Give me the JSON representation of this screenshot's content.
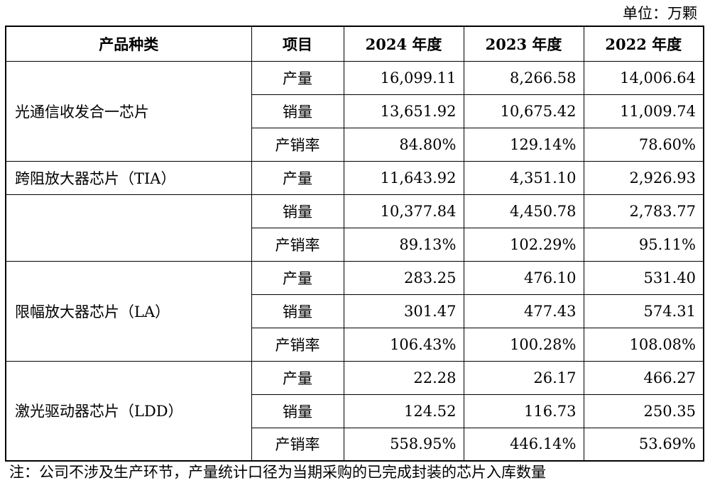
{
  "unit_label": "单位：万颗",
  "headers": [
    "产品种类",
    "项目",
    "2024 年度",
    "2023 年度",
    "2022 年度"
  ],
  "groups": [
    {
      "category": "光通信收发合一芯片",
      "rows": [
        {
          "item": "产量",
          "v2024": "16,099.11",
          "v2023": "8,266.58",
          "v2022": "14,006.64"
        },
        {
          "item": "销量",
          "v2024": "13,651.92",
          "v2023": "10,675.42",
          "v2022": "11,009.74"
        },
        {
          "item": "产销率",
          "v2024": "84.80%",
          "v2023": "129.14%",
          "v2022": "78.60%"
        }
      ]
    },
    {
      "category": "跨阻放大器芯片（TIA）",
      "rows": [
        {
          "item": "产量",
          "v2024": "11,643.92",
          "v2023": "4,351.10",
          "v2022": "2,926.93"
        },
        {
          "item": "销量",
          "v2024": "10,377.84",
          "v2023": "4,450.78",
          "v2022": "2,783.77"
        },
        {
          "item": "产销率",
          "v2024": "89.13%",
          "v2023": "102.29%",
          "v2022": "95.11%"
        }
      ]
    },
    {
      "category": "限幅放大器芯片（LA）",
      "rows": [
        {
          "item": "产量",
          "v2024": "283.25",
          "v2023": "476.10",
          "v2022": "531.40"
        },
        {
          "item": "销量",
          "v2024": "301.47",
          "v2023": "477.43",
          "v2022": "574.31"
        },
        {
          "item": "产销率",
          "v2024": "106.43%",
          "v2023": "100.28%",
          "v2022": "108.08%"
        }
      ]
    },
    {
      "category": "激光驱动器芯片（LDD）",
      "rows": [
        {
          "item": "产量",
          "v2024": "22.28",
          "v2023": "26.17",
          "v2022": "466.27"
        },
        {
          "item": "销量",
          "v2024": "124.52",
          "v2023": "116.73",
          "v2022": "250.35"
        },
        {
          "item": "产销率",
          "v2024": "558.95%",
          "v2023": "446.14%",
          "v2022": "53.69%"
        }
      ]
    }
  ],
  "note": "注：公司不涉及生产环节，产量统计口径为当期采购的已完成封装的芯片入库数量"
}
